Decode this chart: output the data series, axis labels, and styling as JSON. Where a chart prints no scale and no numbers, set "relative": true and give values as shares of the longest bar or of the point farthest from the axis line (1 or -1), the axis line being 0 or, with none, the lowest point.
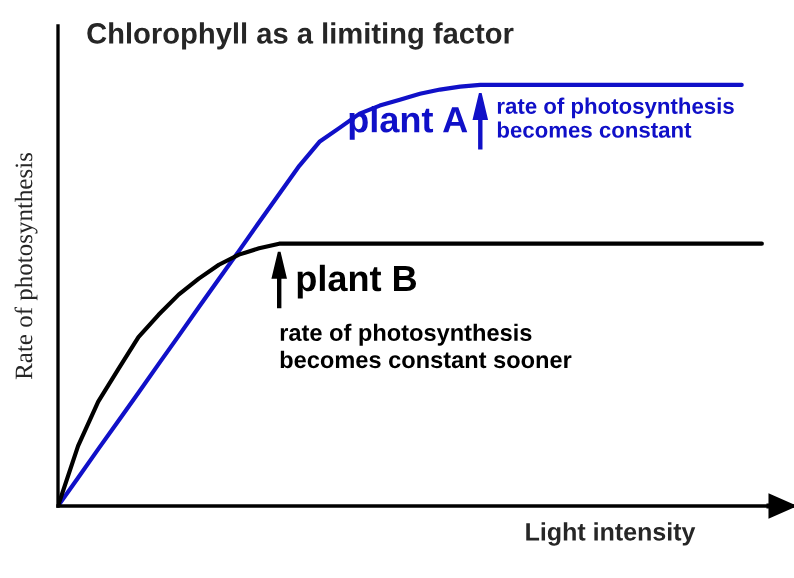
{
  "chart_data": {
    "type": "line",
    "relative": true,
    "title": "Chlorophyll as a limiting factor",
    "xlabel": "Light intensity",
    "ylabel": "Rate of photosynthesis",
    "categories": [
      null,
      null,
      null,
      null,
      null,
      null,
      null,
      null,
      null,
      null,
      null,
      null,
      null,
      null,
      null,
      null,
      null,
      null,
      null,
      null,
      null,
      null,
      null,
      null,
      null,
      null,
      null,
      null,
      null,
      null,
      null,
      null,
      null,
      null,
      null,
      null
    ],
    "series": [
      {
        "name": "plant A",
        "color": "#1010c8",
        "values": [
          0,
          0.067,
          0.135,
          0.202,
          0.269,
          0.337,
          0.404,
          0.472,
          0.539,
          0.606,
          0.674,
          0.741,
          0.808,
          0.865,
          0.898,
          0.932,
          0.951,
          0.965,
          0.979,
          0.989,
          0.996,
          1,
          1,
          1,
          1,
          1,
          1,
          1,
          1,
          1,
          1,
          1,
          1,
          1,
          1,
          null
        ]
      },
      {
        "name": "plant B",
        "color": "#000000",
        "values": [
          0,
          0.143,
          0.248,
          0.325,
          0.401,
          0.454,
          0.502,
          0.54,
          0.573,
          0.597,
          0.612,
          0.623,
          0.623,
          0.623,
          0.623,
          0.623,
          0.623,
          0.623,
          0.623,
          0.623,
          0.623,
          0.623,
          0.623,
          0.623,
          0.623,
          0.623,
          0.623,
          0.623,
          0.623,
          0.623,
          0.623,
          0.623,
          0.623,
          0.623,
          0.623,
          0.623
        ]
      }
    ],
    "annotations": [
      "rate of photosynthesis\nbecomes constant",
      "rate of photosynthesis\nbecomes constant sooner"
    ],
    "marker": "none",
    "line_style": "solid"
  }
}
